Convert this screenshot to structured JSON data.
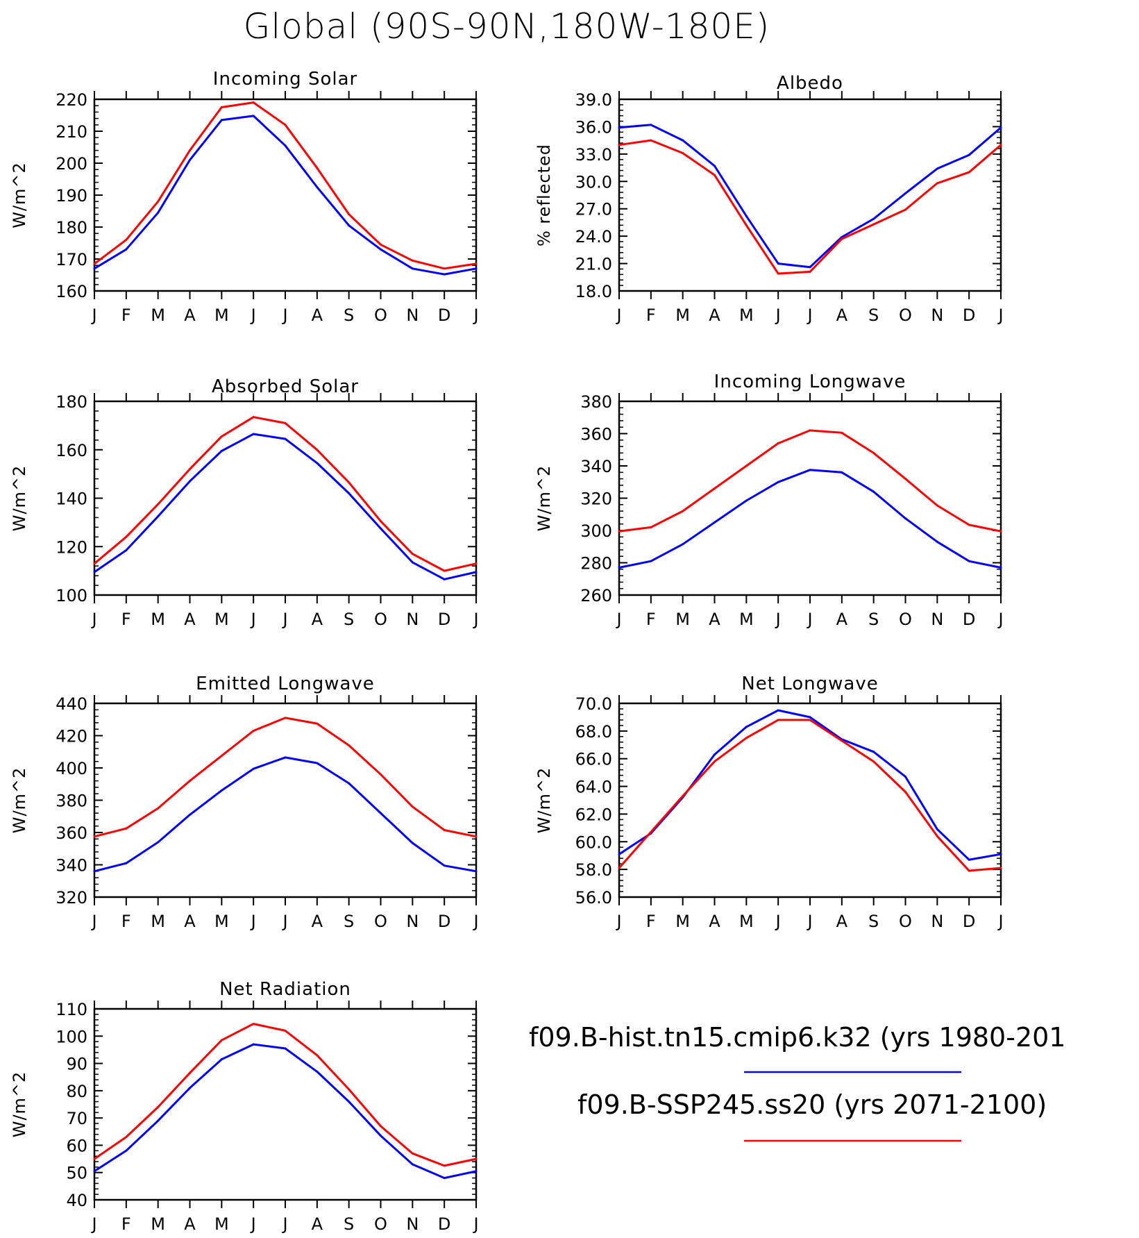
{
  "title": "Global (90S-90N,180W-180E)",
  "months": [
    "J",
    "F",
    "M",
    "A",
    "M",
    "J",
    "J",
    "A",
    "S",
    "O",
    "N",
    "D",
    "J"
  ],
  "colors": {
    "hist": "#0000ff",
    "ssp": "#ff0000"
  },
  "legend": [
    {
      "label": "f09.B-hist.tn15.cmip6.k32 (yrs 1980-201",
      "color": "#0000ff"
    },
    {
      "label": "f09.B-SSP245.ss20 (yrs 2071-2100)",
      "color": "#ff0000"
    }
  ],
  "chart_data": [
    {
      "type": "line",
      "title": "Incoming Solar",
      "ylabel": "W/m^2",
      "ylim": [
        160,
        220
      ],
      "yticks": [
        "160",
        "170",
        "180",
        "190",
        "200",
        "210",
        "220"
      ],
      "categories": [
        "J",
        "F",
        "M",
        "A",
        "M",
        "J",
        "J",
        "A",
        "S",
        "O",
        "N",
        "D",
        "J"
      ],
      "series": [
        {
          "key": "hist",
          "values": [
            167,
            173,
            184.5,
            201,
            213.5,
            214.8,
            205.5,
            192.5,
            180.5,
            173,
            167,
            165.2,
            167
          ]
        },
        {
          "key": "ssp",
          "values": [
            168.5,
            176,
            188,
            204,
            217.5,
            219,
            212,
            198.5,
            184,
            174.5,
            169.5,
            167,
            168.5
          ]
        }
      ]
    },
    {
      "type": "line",
      "title": "Albedo",
      "ylabel": "% reflected",
      "ylim": [
        18,
        39
      ],
      "yticks": [
        "18.0",
        "21.0",
        "24.0",
        "27.0",
        "30.0",
        "33.0",
        "36.0",
        "39.0"
      ],
      "categories": [
        "J",
        "F",
        "M",
        "A",
        "M",
        "J",
        "J",
        "A",
        "S",
        "O",
        "N",
        "D",
        "J"
      ],
      "series": [
        {
          "key": "hist",
          "values": [
            35.9,
            36.2,
            34.5,
            31.7,
            26.2,
            21.0,
            20.6,
            23.9,
            25.9,
            28.7,
            31.4,
            32.9,
            35.9
          ]
        },
        {
          "key": "ssp",
          "values": [
            34.0,
            34.5,
            33.1,
            30.7,
            25.2,
            19.9,
            20.1,
            23.7,
            25.3,
            26.9,
            29.8,
            31.0,
            34.0
          ]
        }
      ]
    },
    {
      "type": "line",
      "title": "Absorbed Solar",
      "ylabel": "W/m^2",
      "ylim": [
        100,
        180
      ],
      "yticks": [
        "100",
        "120",
        "140",
        "160",
        "180"
      ],
      "categories": [
        "J",
        "F",
        "M",
        "A",
        "M",
        "J",
        "J",
        "A",
        "S",
        "O",
        "N",
        "D",
        "J"
      ],
      "series": [
        {
          "key": "hist",
          "values": [
            109.5,
            118.5,
            132.5,
            147,
            159.5,
            166.5,
            164.5,
            154.5,
            142,
            127.5,
            113.5,
            106.5,
            109.5
          ]
        },
        {
          "key": "ssp",
          "values": [
            113,
            124,
            137.5,
            152,
            165.5,
            173.5,
            171,
            160,
            146.5,
            130.5,
            117,
            110,
            113
          ]
        }
      ]
    },
    {
      "type": "line",
      "title": "Incoming Longwave",
      "ylabel": "W/m^2",
      "ylim": [
        260,
        380
      ],
      "yticks": [
        "260",
        "280",
        "300",
        "320",
        "340",
        "360",
        "380"
      ],
      "categories": [
        "J",
        "F",
        "M",
        "A",
        "M",
        "J",
        "J",
        "A",
        "S",
        "O",
        "N",
        "D",
        "J"
      ],
      "series": [
        {
          "key": "hist",
          "values": [
            277,
            281,
            291.5,
            305,
            318.5,
            330,
            337.5,
            336,
            324,
            307.5,
            293,
            281,
            277
          ]
        },
        {
          "key": "ssp",
          "values": [
            299.5,
            302,
            312,
            326,
            340,
            354,
            362,
            360.5,
            348,
            332,
            315.5,
            303.5,
            299.5
          ]
        }
      ]
    },
    {
      "type": "line",
      "title": "Emitted Longwave",
      "ylabel": "W/m^2",
      "ylim": [
        320,
        440
      ],
      "yticks": [
        "320",
        "340",
        "360",
        "380",
        "400",
        "420",
        "440"
      ],
      "categories": [
        "J",
        "F",
        "M",
        "A",
        "M",
        "J",
        "J",
        "A",
        "S",
        "O",
        "N",
        "D",
        "J"
      ],
      "series": [
        {
          "key": "hist",
          "values": [
            336,
            341,
            354,
            371,
            386,
            399.5,
            406.5,
            403,
            390.5,
            372,
            353.5,
            339.5,
            336
          ]
        },
        {
          "key": "ssp",
          "values": [
            357.5,
            362.5,
            375,
            392,
            407.5,
            423,
            431,
            427.5,
            414,
            396,
            376,
            361.5,
            357.5
          ]
        }
      ]
    },
    {
      "type": "line",
      "title": "Net Longwave",
      "ylabel": "W/m^2",
      "ylim": [
        56,
        70
      ],
      "yticks": [
        "56.0",
        "58.0",
        "60.0",
        "62.0",
        "64.0",
        "66.0",
        "68.0",
        "70.0"
      ],
      "categories": [
        "J",
        "F",
        "M",
        "A",
        "M",
        "J",
        "J",
        "A",
        "S",
        "O",
        "N",
        "D",
        "J"
      ],
      "series": [
        {
          "key": "hist",
          "values": [
            59.1,
            60.6,
            63.2,
            66.3,
            68.3,
            69.5,
            69.0,
            67.4,
            66.5,
            64.7,
            60.9,
            58.7,
            59.1
          ]
        },
        {
          "key": "ssp",
          "values": [
            58.1,
            60.7,
            63.3,
            65.8,
            67.5,
            68.8,
            68.8,
            67.3,
            65.8,
            63.6,
            60.4,
            57.9,
            58.1
          ]
        }
      ]
    },
    {
      "type": "line",
      "title": "Net Radiation",
      "ylabel": "W/m^2",
      "ylim": [
        40,
        110
      ],
      "yticks": [
        "40",
        "50",
        "60",
        "70",
        "80",
        "90",
        "100",
        "110"
      ],
      "categories": [
        "J",
        "F",
        "M",
        "A",
        "M",
        "J",
        "J",
        "A",
        "S",
        "O",
        "N",
        "D",
        "J"
      ],
      "series": [
        {
          "key": "hist",
          "values": [
            50.5,
            58,
            69,
            81,
            91.5,
            97,
            95.5,
            87,
            76,
            63.5,
            53,
            48,
            50.5
          ]
        },
        {
          "key": "ssp",
          "values": [
            55,
            63,
            74,
            86.5,
            98.5,
            104.5,
            102,
            93,
            80.5,
            67,
            57,
            52.5,
            55
          ]
        }
      ]
    }
  ]
}
